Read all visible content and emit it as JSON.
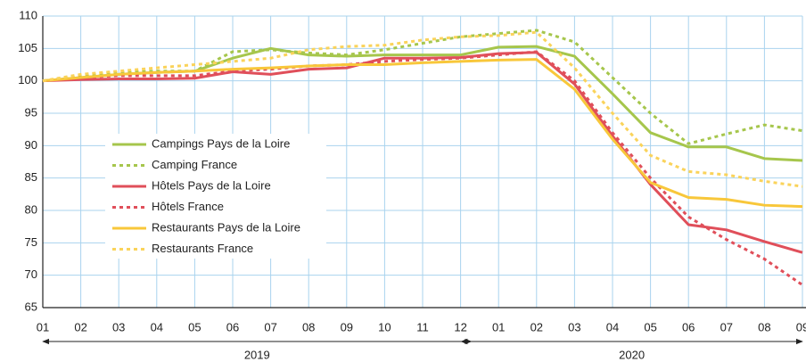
{
  "chart_data": {
    "type": "line",
    "categories": [
      "01",
      "02",
      "03",
      "04",
      "05",
      "06",
      "07",
      "08",
      "09",
      "10",
      "11",
      "12",
      "01",
      "02",
      "03",
      "04",
      "05",
      "06",
      "07",
      "08",
      "09"
    ],
    "x_groups": [
      "2019",
      "2020"
    ],
    "ylim": [
      65,
      110
    ],
    "yticks": [
      65,
      70,
      75,
      80,
      85,
      90,
      95,
      100,
      105,
      110
    ],
    "grid": true,
    "legend": "left",
    "series": [
      {
        "name": "Campings Pays de la Loire",
        "color": "#a6c64c",
        "style": "solid",
        "values": [
          100,
          100.5,
          101,
          101.3,
          101.5,
          103.5,
          105,
          104,
          103.8,
          104,
          104,
          104,
          105.2,
          105.3,
          103.8,
          98,
          92,
          89.8,
          89.8,
          88,
          87.7
        ]
      },
      {
        "name": "Camping France",
        "color": "#a6c64c",
        "style": "dotted",
        "values": [
          100,
          100.8,
          101.3,
          101.5,
          101.5,
          104.5,
          104.8,
          104.3,
          104,
          104.8,
          105.8,
          106.8,
          107.3,
          107.8,
          106,
          100.5,
          95,
          90.3,
          91.8,
          93.2,
          92.3
        ]
      },
      {
        "name": "Hôtels Pays de la Loire",
        "color": "#e04f5a",
        "style": "solid",
        "values": [
          100,
          100.2,
          100.3,
          100.3,
          100.4,
          101.4,
          101,
          101.8,
          102,
          103.5,
          103.5,
          103.6,
          104.2,
          104.4,
          99.5,
          91.5,
          84,
          77.8,
          77,
          75.2,
          73.5
        ]
      },
      {
        "name": "Hôtels France",
        "color": "#e04f5a",
        "style": "dotted",
        "values": [
          100,
          100.5,
          100.8,
          100.8,
          100.8,
          101.5,
          101.8,
          102.3,
          102.5,
          103,
          103.3,
          103.5,
          104,
          104.5,
          100,
          92,
          85,
          79,
          75.5,
          72.5,
          68.5
        ]
      },
      {
        "name": "Restaurants Pays de la Loire",
        "color": "#f8c73a",
        "style": "solid",
        "values": [
          100,
          100.5,
          101,
          101.3,
          101.5,
          101.8,
          102,
          102.3,
          102.5,
          102.5,
          102.8,
          103,
          103.2,
          103.3,
          98.7,
          91,
          84.3,
          82,
          81.7,
          80.8,
          80.6
        ]
      },
      {
        "name": "Restaurants France",
        "color": "#fad35a",
        "style": "dotted",
        "values": [
          100,
          101,
          101.5,
          102,
          102.5,
          103,
          103.5,
          104.8,
          105.3,
          105.5,
          106.3,
          106.8,
          107,
          107.5,
          102,
          95,
          88.5,
          86,
          85.5,
          84.5,
          83.7
        ]
      }
    ]
  }
}
